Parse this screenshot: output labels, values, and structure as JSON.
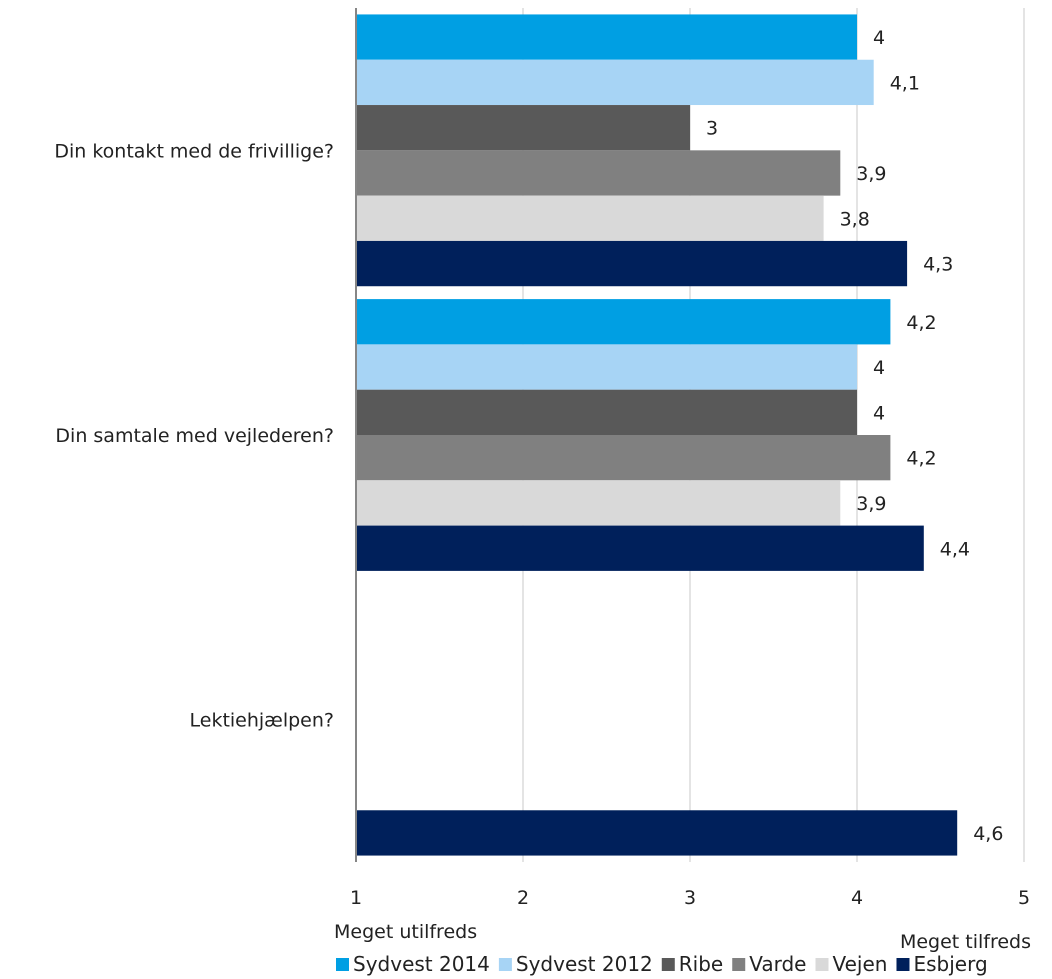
{
  "chart_data": {
    "type": "bar",
    "orientation": "horizontal",
    "categories": [
      "Din kontakt med de frivillige?",
      "Din samtale med vejlederen?",
      "Lektiehjælpen?"
    ],
    "series": [
      {
        "name": "Sydvest 2014",
        "color": "#009fe3",
        "values": [
          4,
          4.2,
          null
        ],
        "labels": [
          "4",
          "4,2",
          ""
        ]
      },
      {
        "name": "Sydvest 2012",
        "color": "#a7d4f5",
        "values": [
          4.1,
          4,
          null
        ],
        "labels": [
          "4,1",
          "4",
          ""
        ]
      },
      {
        "name": "Ribe",
        "color": "#595959",
        "values": [
          3,
          4,
          null
        ],
        "labels": [
          "3",
          "4",
          ""
        ]
      },
      {
        "name": "Varde",
        "color": "#808080",
        "values": [
          3.9,
          4.2,
          null
        ],
        "labels": [
          "3,9",
          "4,2",
          ""
        ]
      },
      {
        "name": "Vejen",
        "color": "#d9d9d9",
        "values": [
          3.8,
          3.9,
          null
        ],
        "labels": [
          "3,8",
          "3,9",
          ""
        ]
      },
      {
        "name": "Esbjerg",
        "color": "#00205b",
        "values": [
          4.3,
          4.4,
          4.6
        ],
        "labels": [
          "4,3",
          "4,4",
          "4,6"
        ]
      }
    ],
    "xlim": [
      1,
      5
    ],
    "xticks": [
      "1",
      "2",
      "3",
      "4",
      "5"
    ],
    "xlabel_left": "Meget utilfreds",
    "xlabel_right": "Meget tilfreds",
    "grid": true,
    "legend_position": "bottom"
  }
}
